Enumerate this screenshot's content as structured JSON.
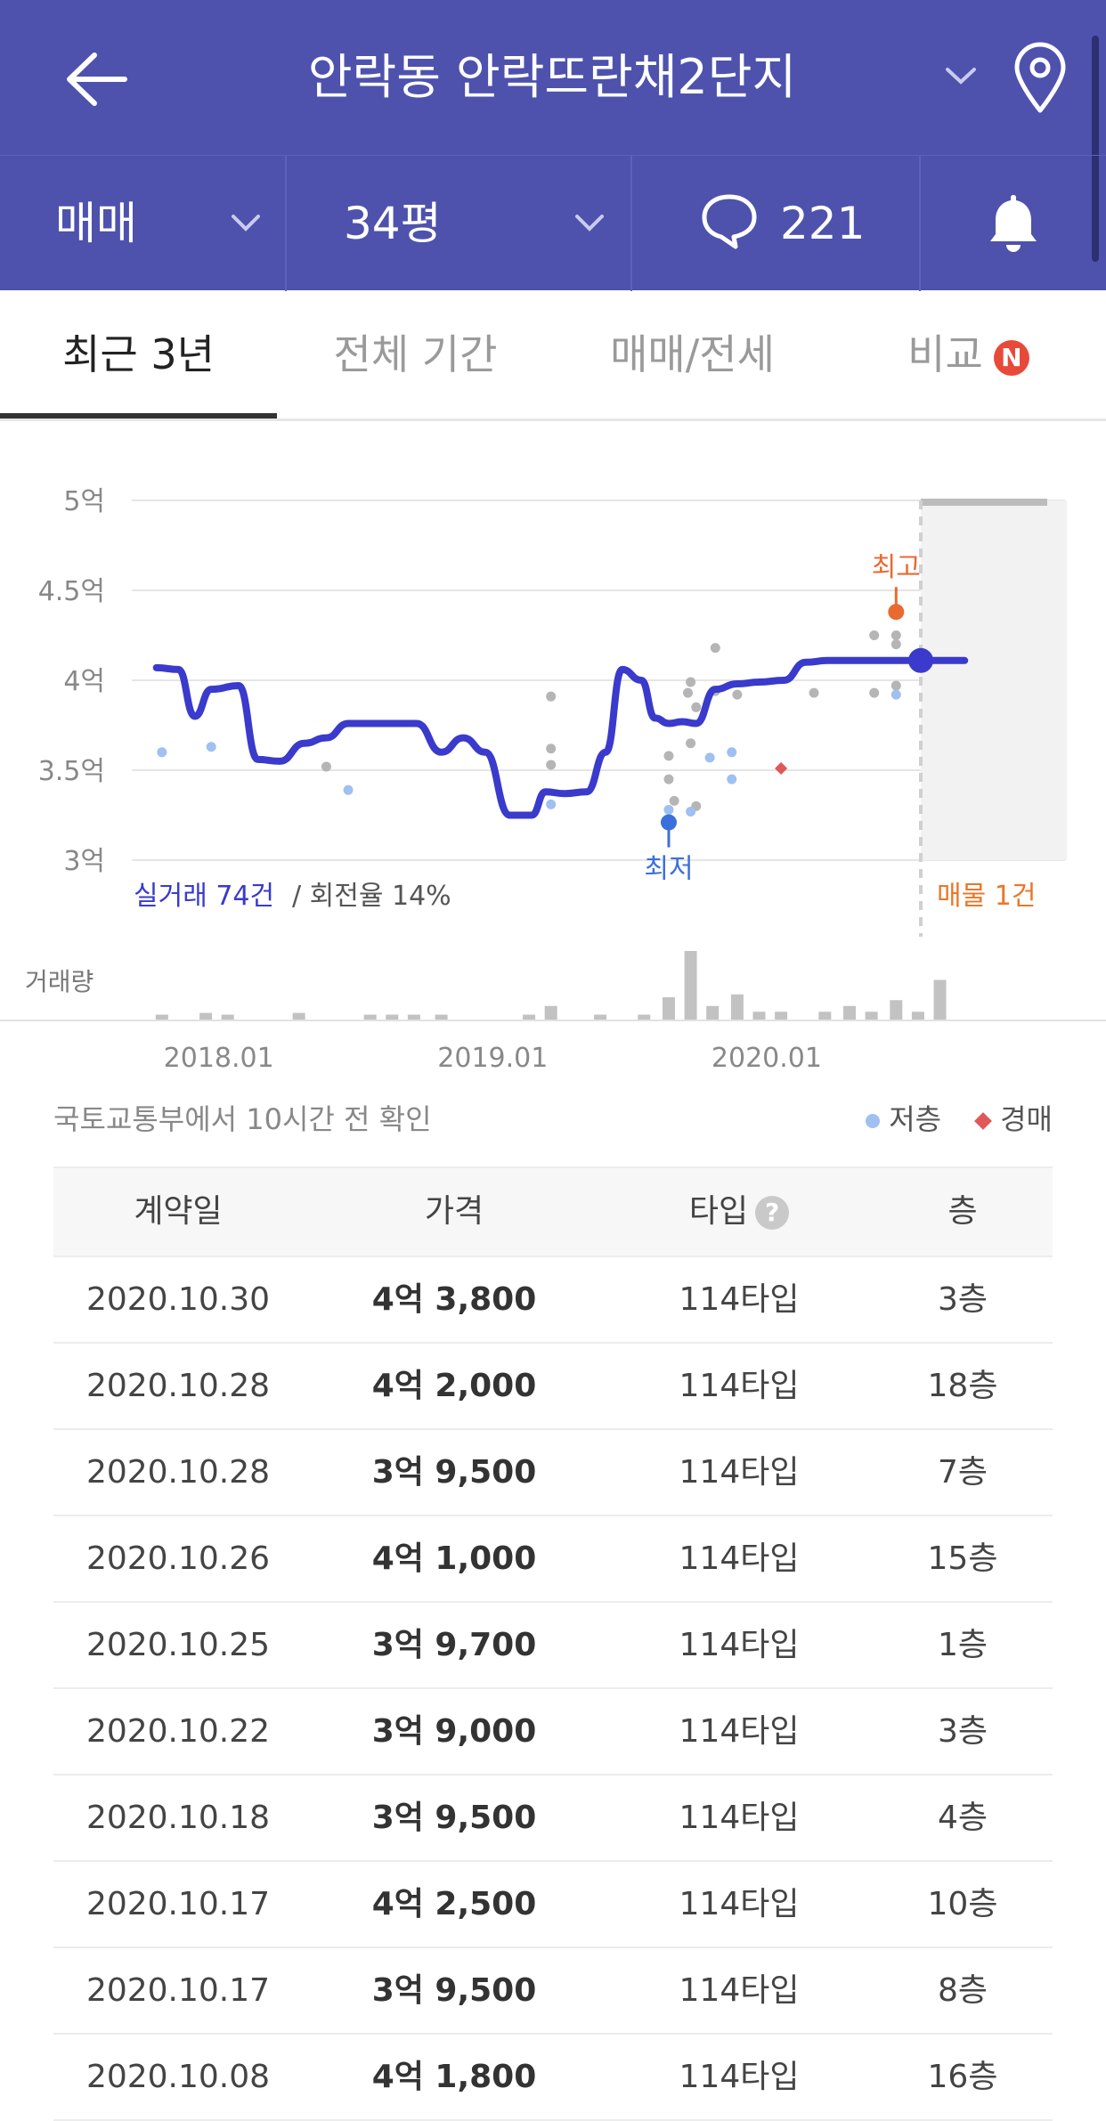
{
  "header": {
    "title": "안락동 안락뜨란채2단지",
    "deal_type": "매매",
    "size": "34평",
    "comment_count": "221"
  },
  "tabs": [
    {
      "label": "최근 3년",
      "active": true
    },
    {
      "label": "전체 기간",
      "active": false
    },
    {
      "label": "매매/전세",
      "active": false
    },
    {
      "label": "비교",
      "active": false,
      "badge": "N"
    }
  ],
  "chart_summary": {
    "deals_label": "실거래 74건",
    "turnover_label": "/ 회전율 14%",
    "listings_label": "매물 1건",
    "low_marker": "최저",
    "high_marker": "최고",
    "volume_label": "거래량"
  },
  "chart_data": {
    "type": "line",
    "y_unit": "억",
    "yticks": [
      "5억",
      "4.5억",
      "4억",
      "3.5억",
      "3억"
    ],
    "ylim": [
      3.0,
      5.0
    ],
    "xticks": [
      "2018.01",
      "2019.01",
      "2020.01"
    ],
    "x": [
      2017.88,
      2017.96,
      2018.02,
      2018.08,
      2018.18,
      2018.25,
      2018.33,
      2018.42,
      2018.5,
      2018.58,
      2018.67,
      2018.75,
      2018.83,
      2018.92,
      2019.0,
      2019.08,
      2019.17,
      2019.25,
      2019.3,
      2019.37,
      2019.45,
      2019.52,
      2019.58,
      2019.65,
      2019.7,
      2019.75,
      2019.8,
      2019.85,
      2019.92,
      2020.0,
      2020.08,
      2020.17,
      2020.25,
      2020.33,
      2020.42,
      2020.5,
      2020.58,
      2020.67,
      2020.75,
      2020.83
    ],
    "values": [
      4.07,
      4.06,
      3.8,
      3.95,
      3.97,
      3.56,
      3.55,
      3.65,
      3.68,
      3.76,
      3.76,
      3.76,
      3.76,
      3.6,
      3.68,
      3.6,
      3.25,
      3.25,
      3.38,
      3.37,
      3.38,
      3.6,
      4.06,
      4.0,
      3.79,
      3.76,
      3.77,
      3.76,
      3.95,
      3.98,
      3.99,
      4.0,
      4.1,
      4.11,
      4.11,
      4.11,
      4.11,
      4.11,
      4.11,
      4.11
    ],
    "points_low_floor": [
      {
        "x": 2017.9,
        "y": 3.6
      },
      {
        "x": 2018.08,
        "y": 3.63
      },
      {
        "x": 2018.58,
        "y": 3.39
      },
      {
        "x": 2019.32,
        "y": 3.31
      },
      {
        "x": 2019.75,
        "y": 3.28
      },
      {
        "x": 2019.83,
        "y": 3.27
      },
      {
        "x": 2019.9,
        "y": 3.57
      },
      {
        "x": 2019.98,
        "y": 3.6
      },
      {
        "x": 2019.98,
        "y": 3.45
      },
      {
        "x": 2020.58,
        "y": 3.92
      }
    ],
    "points_other": [
      {
        "x": 2018.5,
        "y": 3.52
      },
      {
        "x": 2019.32,
        "y": 3.91
      },
      {
        "x": 2019.32,
        "y": 3.62
      },
      {
        "x": 2019.32,
        "y": 3.53
      },
      {
        "x": 2019.75,
        "y": 3.58
      },
      {
        "x": 2019.75,
        "y": 3.45
      },
      {
        "x": 2019.77,
        "y": 3.33
      },
      {
        "x": 2019.82,
        "y": 3.93
      },
      {
        "x": 2019.83,
        "y": 3.99
      },
      {
        "x": 2019.83,
        "y": 3.65
      },
      {
        "x": 2019.85,
        "y": 3.85
      },
      {
        "x": 2019.85,
        "y": 3.3
      },
      {
        "x": 2019.92,
        "y": 4.18
      },
      {
        "x": 2019.92,
        "y": 3.94
      },
      {
        "x": 2020.0,
        "y": 3.92
      },
      {
        "x": 2020.28,
        "y": 3.93
      },
      {
        "x": 2020.5,
        "y": 4.25
      },
      {
        "x": 2020.5,
        "y": 3.93
      },
      {
        "x": 2020.58,
        "y": 4.25
      },
      {
        "x": 2020.58,
        "y": 4.2
      },
      {
        "x": 2020.58,
        "y": 3.97
      }
    ],
    "points_auction": [
      {
        "x": 2020.16,
        "y": 3.51
      }
    ],
    "low_point": {
      "x": 2019.75,
      "y": 3.21
    },
    "high_point": {
      "x": 2020.58,
      "y": 4.38
    },
    "current_point": {
      "x": 2020.67,
      "y": 4.11
    },
    "volume": [
      {
        "x": 2017.9,
        "v": 1
      },
      {
        "x": 2018.06,
        "v": 1.3
      },
      {
        "x": 2018.14,
        "v": 1
      },
      {
        "x": 2018.4,
        "v": 1.3
      },
      {
        "x": 2018.66,
        "v": 1
      },
      {
        "x": 2018.74,
        "v": 1
      },
      {
        "x": 2018.82,
        "v": 1
      },
      {
        "x": 2018.92,
        "v": 1
      },
      {
        "x": 2019.24,
        "v": 1
      },
      {
        "x": 2019.32,
        "v": 2.5
      },
      {
        "x": 2019.5,
        "v": 1
      },
      {
        "x": 2019.66,
        "v": 1
      },
      {
        "x": 2019.75,
        "v": 4
      },
      {
        "x": 2019.83,
        "v": 12
      },
      {
        "x": 2019.91,
        "v": 2.5
      },
      {
        "x": 2020.0,
        "v": 4.5
      },
      {
        "x": 2020.08,
        "v": 1.5
      },
      {
        "x": 2020.16,
        "v": 1.5
      },
      {
        "x": 2020.32,
        "v": 1.5
      },
      {
        "x": 2020.41,
        "v": 2.5
      },
      {
        "x": 2020.49,
        "v": 1.5
      },
      {
        "x": 2020.58,
        "v": 3.5
      },
      {
        "x": 2020.66,
        "v": 1.5
      },
      {
        "x": 2020.74,
        "v": 7
      }
    ]
  },
  "legend": {
    "source_note": "국토교통부에서 10시간 전 확인",
    "low_floor": "저층",
    "auction": "경매"
  },
  "table": {
    "headers": [
      "계약일",
      "가격",
      "타입",
      "층"
    ],
    "rows": [
      [
        "2020.10.30",
        "4억 3,800",
        "114타입",
        "3층"
      ],
      [
        "2020.10.28",
        "4억 2,000",
        "114타입",
        "18층"
      ],
      [
        "2020.10.28",
        "3억 9,500",
        "114타입",
        "7층"
      ],
      [
        "2020.10.26",
        "4억 1,000",
        "114타입",
        "15층"
      ],
      [
        "2020.10.25",
        "3억 9,700",
        "114타입",
        "1층"
      ],
      [
        "2020.10.22",
        "3억 9,000",
        "114타입",
        "3층"
      ],
      [
        "2020.10.18",
        "3억 9,500",
        "114타입",
        "4층"
      ],
      [
        "2020.10.17",
        "4억 2,500",
        "114타입",
        "10층"
      ],
      [
        "2020.10.17",
        "3억 9,500",
        "114타입",
        "8층"
      ],
      [
        "2020.10.08",
        "4억 1,800",
        "114타입",
        "16층"
      ]
    ]
  },
  "colors": {
    "header_bg": "#4e52ad",
    "line": "#3a3acc",
    "low_marker": "#3b6fdc",
    "high_marker": "#e86a30",
    "listing_text": "#e8782a"
  }
}
